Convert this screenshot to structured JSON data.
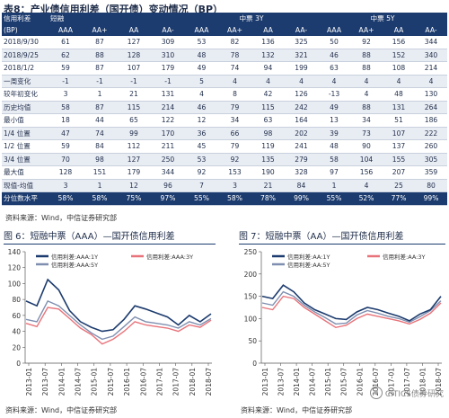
{
  "table": {
    "caption": "表8：产业债信用利差（国开债）变动情况（BP）",
    "group_row": [
      "信用利差",
      "短融",
      "中票 3Y",
      "中票 5Y"
    ],
    "col_row": [
      "(BP)",
      "AAA",
      "AA+",
      "AA",
      "AA-",
      "AAA",
      "AA+",
      "AA",
      "AA-",
      "AAA",
      "AA+",
      "AA",
      "AA-"
    ],
    "rows": [
      [
        "2018/9/30",
        "61",
        "87",
        "127",
        "309",
        "53",
        "82",
        "136",
        "325",
        "50",
        "92",
        "156",
        "344"
      ],
      [
        "2018/9/25",
        "62",
        "88",
        "128",
        "310",
        "48",
        "78",
        "132",
        "321",
        "46",
        "88",
        "152",
        "340"
      ],
      [
        "2018/1/2",
        "59",
        "87",
        "107",
        "179",
        "49",
        "74",
        "94",
        "199",
        "63",
        "88",
        "108",
        "214"
      ],
      [
        "一周变化",
        "-1",
        "-1",
        "-1",
        "-1",
        "5",
        "4",
        "4",
        "4",
        "4",
        "4",
        "4",
        "4"
      ],
      [
        "较年初变化",
        "3",
        "1",
        "21",
        "131",
        "4",
        "8",
        "42",
        "126",
        "-13",
        "4",
        "48",
        "130"
      ],
      [
        "历史均值",
        "58",
        "87",
        "115",
        "214",
        "46",
        "79",
        "115",
        "242",
        "49",
        "88",
        "131",
        "264"
      ],
      [
        "最小值",
        "18",
        "44",
        "65",
        "122",
        "12",
        "34",
        "63",
        "164",
        "13",
        "34",
        "51",
        "186"
      ],
      [
        "1/4 位置",
        "47",
        "74",
        "99",
        "170",
        "36",
        "66",
        "98",
        "202",
        "39",
        "73",
        "107",
        "222"
      ],
      [
        "1/2 位置",
        "59",
        "84",
        "112",
        "211",
        "45",
        "79",
        "119",
        "241",
        "48",
        "90",
        "137",
        "260"
      ],
      [
        "3/4 位置",
        "70",
        "98",
        "127",
        "250",
        "53",
        "92",
        "135",
        "279",
        "58",
        "104",
        "155",
        "305"
      ],
      [
        "最大值",
        "128",
        "151",
        "179",
        "344",
        "92",
        "153",
        "190",
        "328",
        "97",
        "156",
        "207",
        "359"
      ],
      [
        "现值-均值",
        "3",
        "1",
        "12",
        "96",
        "7",
        "3",
        "21",
        "84",
        "1",
        "4",
        "25",
        "80"
      ],
      [
        "分位数水平",
        "58%",
        "58%",
        "75%",
        "97%",
        "55%",
        "58%",
        "78%",
        "99%",
        "55%",
        "52%",
        "77%",
        "99%"
      ]
    ],
    "source": "资料来源：Wind，中信证券研究部"
  },
  "figure6": {
    "caption": "图 6：短融中票（AAA）—国开债信用利差",
    "source": "资料来源：Wind，中信证券研究部",
    "legend": [
      "信用利差:AAA:1Y",
      "信用利差:AAA:3Y",
      "信用利差:AAA:5Y"
    ],
    "series_colors": [
      "#1c3b6e",
      "#e8737a",
      "#7f8fb0"
    ]
  },
  "figure7": {
    "caption": "图 7：短融中票（AA）—国开债信用利差",
    "source": "资料来源：Wind，中信证券研究部",
    "legend": [
      "信用利差:AA:1Y",
      "信用利差:AA:3Y",
      "信用利差:AA:5Y"
    ],
    "series_colors": [
      "#1c3b6e",
      "#e8737a",
      "#7f8fb0"
    ]
  },
  "chart_data": [
    {
      "type": "line",
      "x_ticks": [
        "2013-01",
        "2013-07",
        "2014-01",
        "2014-07",
        "2015-01",
        "2015-07",
        "2016-01",
        "2016-07",
        "2017-01",
        "2017-07",
        "2018-01",
        "2018-07"
      ],
      "ylim": [
        0,
        140
      ],
      "y_ticks": [
        "0",
        "20",
        "40",
        "60",
        "80",
        "100",
        "120",
        "140"
      ],
      "series": [
        {
          "name": "信用利差:AAA:1Y",
          "values": [
            78,
            72,
            105,
            92,
            66,
            52,
            45,
            40,
            42,
            55,
            72,
            68,
            63,
            58,
            48,
            60,
            52,
            62
          ]
        },
        {
          "name": "信用利差:AAA:3Y",
          "values": [
            50,
            46,
            70,
            68,
            56,
            44,
            36,
            24,
            30,
            40,
            52,
            48,
            46,
            44,
            40,
            48,
            45,
            54
          ]
        },
        {
          "name": "信用利差:AAA:5Y",
          "values": [
            55,
            52,
            78,
            72,
            60,
            48,
            38,
            30,
            34,
            46,
            58,
            52,
            50,
            48,
            44,
            52,
            48,
            56
          ]
        }
      ]
    },
    {
      "type": "line",
      "x_ticks": [
        "2013-01",
        "2013-07",
        "2014-01",
        "2014-07",
        "2015-01",
        "2015-07",
        "2016-01",
        "2016-07",
        "2017-01",
        "2017-07",
        "2018-01",
        "2018-07"
      ],
      "ylim": [
        0,
        250
      ],
      "y_ticks": [
        "0",
        "50",
        "100",
        "150",
        "200",
        "250"
      ],
      "series": [
        {
          "name": "信用利差:AA:1Y",
          "values": [
            150,
            145,
            175,
            160,
            135,
            120,
            110,
            100,
            98,
            115,
            125,
            120,
            112,
            105,
            95,
            110,
            120,
            150
          ]
        },
        {
          "name": "信用利差:AA:3Y",
          "values": [
            125,
            120,
            150,
            145,
            125,
            110,
            95,
            80,
            85,
            100,
            110,
            105,
            100,
            95,
            88,
            98,
            112,
            135
          ]
        },
        {
          "name": "信用利差:AA:5Y",
          "values": [
            135,
            130,
            160,
            150,
            130,
            115,
            102,
            88,
            90,
            108,
            118,
            112,
            105,
            100,
            92,
            104,
            118,
            140
          ]
        }
      ]
    }
  ],
  "watermark": {
    "text": "CITICS债券研究"
  }
}
